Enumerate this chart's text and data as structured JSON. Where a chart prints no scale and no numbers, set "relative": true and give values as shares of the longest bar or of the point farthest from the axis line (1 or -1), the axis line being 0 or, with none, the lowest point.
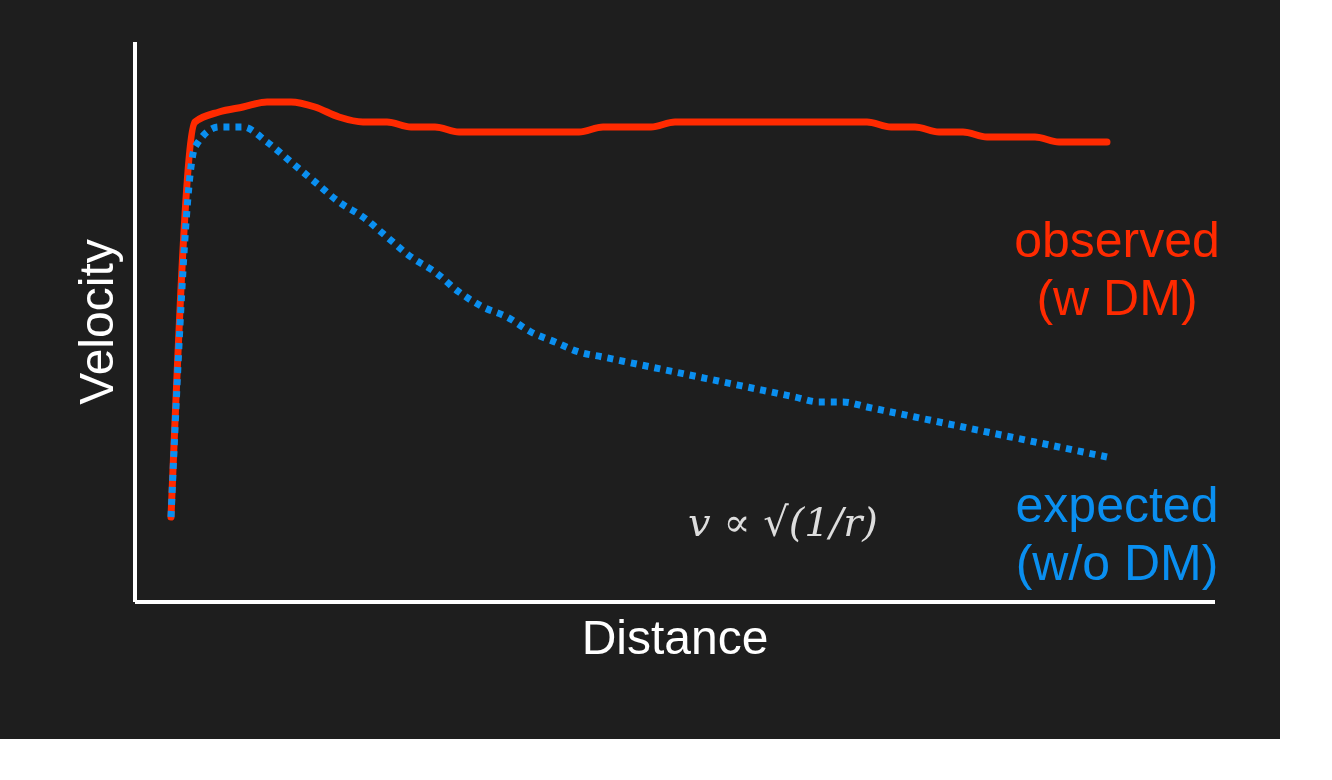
{
  "chart_data": {
    "type": "line",
    "relative": true,
    "xlabel": "Distance",
    "ylabel": "Velocity",
    "grid": false,
    "legend": false,
    "marker": "none",
    "categories": [
      null,
      null,
      null,
      null,
      null,
      null,
      null,
      null,
      null,
      null,
      null,
      null,
      null,
      null,
      null,
      null,
      null,
      null,
      null,
      null,
      null,
      null,
      null,
      null,
      null,
      null,
      null,
      null,
      null,
      null,
      null,
      null,
      null,
      null,
      null,
      null,
      null,
      null,
      null,
      null
    ],
    "series": [
      {
        "name": "observed\n(w DM)",
        "color": "#ff2a00",
        "line_style": "solid",
        "values": [
          0.17,
          0.96,
          0.98,
          0.99,
          1,
          1,
          0.99,
          0.97,
          0.96,
          0.96,
          0.95,
          0.95,
          0.94,
          0.94,
          0.94,
          0.94,
          0.94,
          0.94,
          0.95,
          0.95,
          0.95,
          0.96,
          0.96,
          0.96,
          0.96,
          0.96,
          0.96,
          0.96,
          0.96,
          0.96,
          0.95,
          0.95,
          0.94,
          0.94,
          0.93,
          0.93,
          0.93,
          0.92,
          0.92,
          0.92
        ]
      },
      {
        "name": "expected\n(w/o DM)",
        "color": "#0a8ff0",
        "line_style": "dotted",
        "values": [
          0.17,
          0.91,
          0.95,
          0.95,
          0.92,
          0.88,
          0.84,
          0.8,
          0.77,
          0.73,
          0.69,
          0.66,
          0.62,
          0.59,
          0.57,
          0.54,
          0.52,
          0.5,
          0.49,
          0.48,
          0.47,
          0.46,
          0.45,
          0.44,
          0.43,
          0.42,
          0.41,
          0.4,
          0.4,
          0.39,
          0.38,
          0.37,
          0.36,
          0.35,
          0.34,
          0.33,
          0.32,
          0.31,
          0.3,
          0.29
        ]
      }
    ],
    "annotations": [
      "v ∝ √(1/r)"
    ]
  }
}
